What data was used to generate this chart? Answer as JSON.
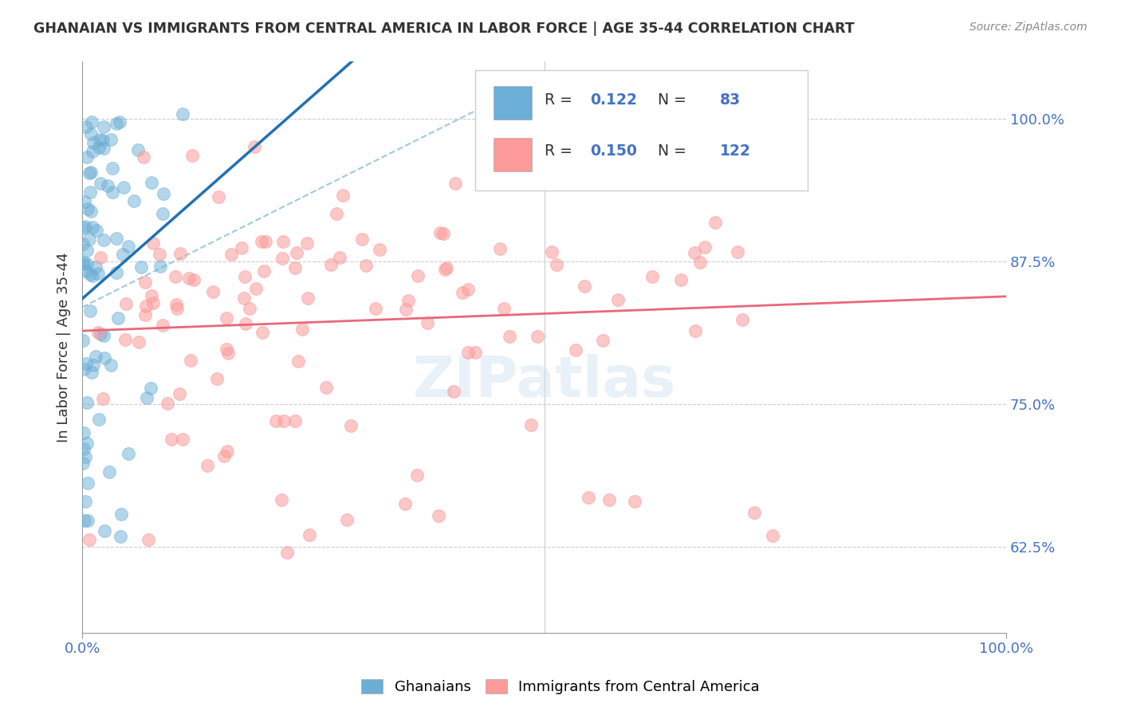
{
  "title": "GHANAIAN VS IMMIGRANTS FROM CENTRAL AMERICA IN LABOR FORCE | AGE 35-44 CORRELATION CHART",
  "source": "Source: ZipAtlas.com",
  "ylabel": "In Labor Force | Age 35-44",
  "xlim": [
    0.0,
    1.0
  ],
  "ylim": [
    0.55,
    1.05
  ],
  "yticks": [
    0.625,
    0.75,
    0.875,
    1.0
  ],
  "ytick_labels": [
    "62.5%",
    "75.0%",
    "87.5%",
    "100.0%"
  ],
  "watermark": "ZIPatlas",
  "ghanaian_color": "#6baed6",
  "central_america_color": "#fb9a99",
  "ghanaian_line_color": "#2171b5",
  "central_america_line_color": "#e8687a",
  "dashed_line_color": "#9ecae1",
  "title_color": "#333333",
  "tick_color": "#4472c4",
  "ghanaians_seed": 42,
  "central_america_seed": 123,
  "ghanaian_n": 83,
  "central_america_n": 122,
  "ghanaian_R": 0.122,
  "central_america_R": 0.15
}
